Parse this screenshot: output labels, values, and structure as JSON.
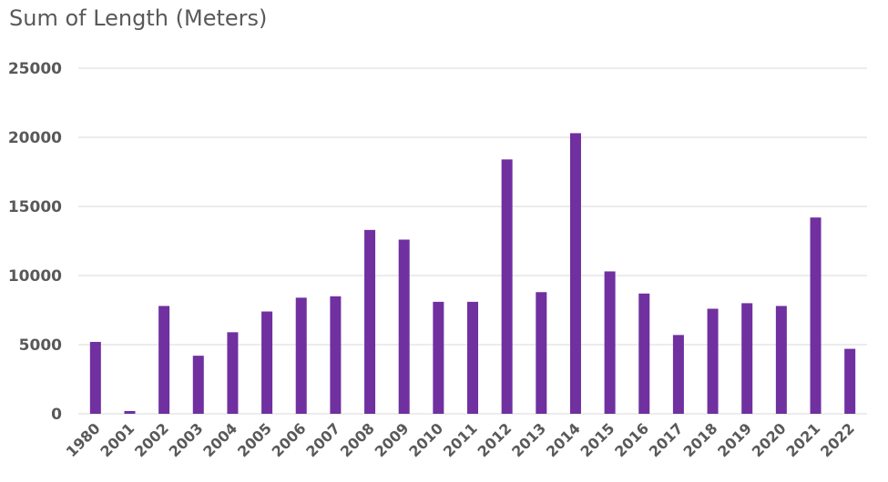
{
  "chart_data": {
    "type": "bar",
    "title": "Sum of Length (Meters)",
    "xlabel": "",
    "ylabel": "",
    "ylim": [
      0,
      25000
    ],
    "yticks": [
      0,
      5000,
      10000,
      15000,
      20000,
      25000
    ],
    "categories": [
      "1980",
      "2001",
      "2002",
      "2003",
      "2004",
      "2005",
      "2006",
      "2007",
      "2008",
      "2009",
      "2010",
      "2011",
      "2012",
      "2013",
      "2014",
      "2015",
      "2016",
      "2017",
      "2018",
      "2019",
      "2020",
      "2021",
      "2022"
    ],
    "values": [
      5200,
      200,
      7800,
      4200,
      5900,
      7400,
      8400,
      8500,
      13300,
      12600,
      8100,
      8100,
      18400,
      8800,
      20300,
      10300,
      8700,
      5700,
      7600,
      8000,
      7800,
      14200,
      4700
    ],
    "grid": true,
    "legend": "none",
    "colors": {
      "bar": "#7030a0",
      "grid": "#d9d9d9",
      "text": "#595959"
    }
  }
}
